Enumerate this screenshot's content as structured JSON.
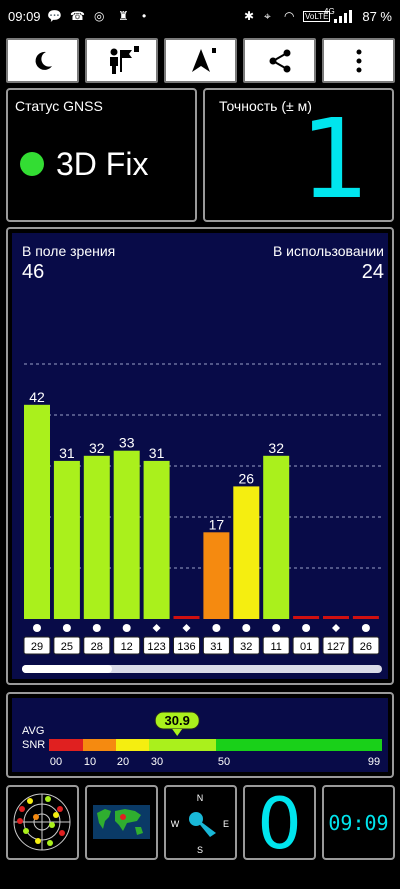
{
  "statusbar": {
    "time": "09:09",
    "battery": "87 %",
    "network": "4G",
    "volte": "VoLTE"
  },
  "toolbar": {
    "night_mode": "moon-icon",
    "map_mode": "person-flag-icon",
    "navigation": "arrow-icon",
    "share": "share-icon",
    "more": "more-vert-icon"
  },
  "gnss": {
    "label": "Статус GNSS",
    "status": "3D Fix",
    "status_color": "#33dd33"
  },
  "accuracy": {
    "label": "Точность (± м)",
    "value": "1",
    "value_color": "#00e5ee"
  },
  "sky": {
    "in_view_label": "В поле зрения",
    "in_view_value": "46",
    "in_use_label": "В использовании",
    "in_use_value": "24"
  },
  "chart_data": {
    "type": "bar",
    "ylim": [
      0,
      60
    ],
    "categories": [
      "29",
      "25",
      "28",
      "12",
      "123",
      "136",
      "31",
      "32",
      "11",
      "01",
      "127",
      "26"
    ],
    "markers": [
      "circle",
      "circle",
      "circle",
      "circle",
      "diamond",
      "diamond",
      "circle",
      "circle",
      "circle",
      "circle",
      "diamond",
      "circle"
    ],
    "values": [
      42,
      31,
      32,
      33,
      31,
      0,
      17,
      26,
      32,
      0,
      0,
      0
    ],
    "labels": [
      "42",
      "31",
      "32",
      "33",
      "31",
      "",
      "17",
      "26",
      "32",
      "",
      "",
      ""
    ],
    "colors": [
      "#aaf01c",
      "#aaf01c",
      "#aaf01c",
      "#aaf01c",
      "#aaf01c",
      "#d01010",
      "#f58a10",
      "#f5ee10",
      "#aaf01c",
      "#d01010",
      "#d01010",
      "#d01010"
    ],
    "scroll_fraction": 0.25
  },
  "snr": {
    "avg_label": "AVG",
    "snr_label": "SNR",
    "value": "30.9",
    "value_num": 30.9,
    "ticks": [
      "00",
      "10",
      "20",
      "30",
      "50",
      "99"
    ]
  },
  "bottom": {
    "sats_value": "0",
    "clock": "09:09",
    "compass": {
      "n": "N",
      "e": "E",
      "s": "S",
      "w": "W"
    }
  }
}
